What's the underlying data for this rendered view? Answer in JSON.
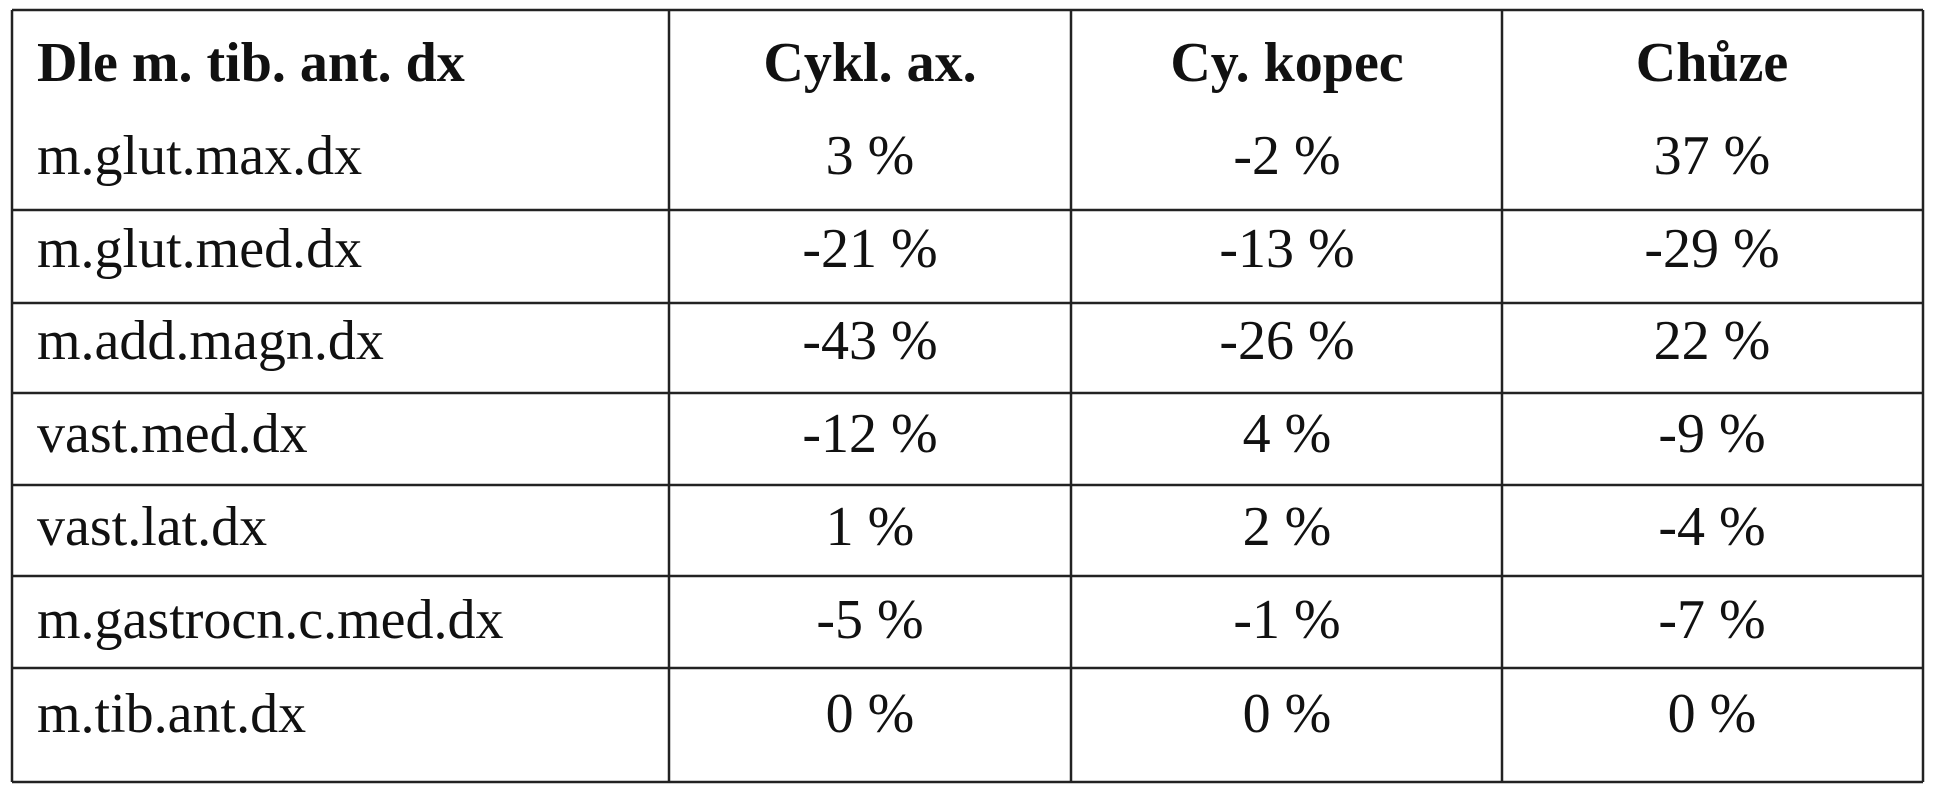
{
  "table": {
    "header": [
      "Dle m. tib. ant. dx",
      "Cykl. ax.",
      "Cy. kopec",
      "Chůze"
    ],
    "rows": [
      [
        "m.glut.max.dx",
        "3 %",
        "-2 %",
        "37 %"
      ],
      [
        "m.glut.med.dx",
        "-21 %",
        "-13 %",
        "-29 %"
      ],
      [
        "m.add.magn.dx",
        "-43 %",
        "-26 %",
        "22 %"
      ],
      [
        "vast.med.dx",
        "-12 %",
        "4 %",
        "-9 %"
      ],
      [
        "vast.lat.dx",
        "1 %",
        "2 %",
        "-4 %"
      ],
      [
        "m.gastrocn.c.med.dx",
        "-5 %",
        "-1 %",
        "-7 %"
      ],
      [
        "m.tib.ant.dx",
        "0 %",
        "0 %",
        "0 %"
      ]
    ]
  }
}
